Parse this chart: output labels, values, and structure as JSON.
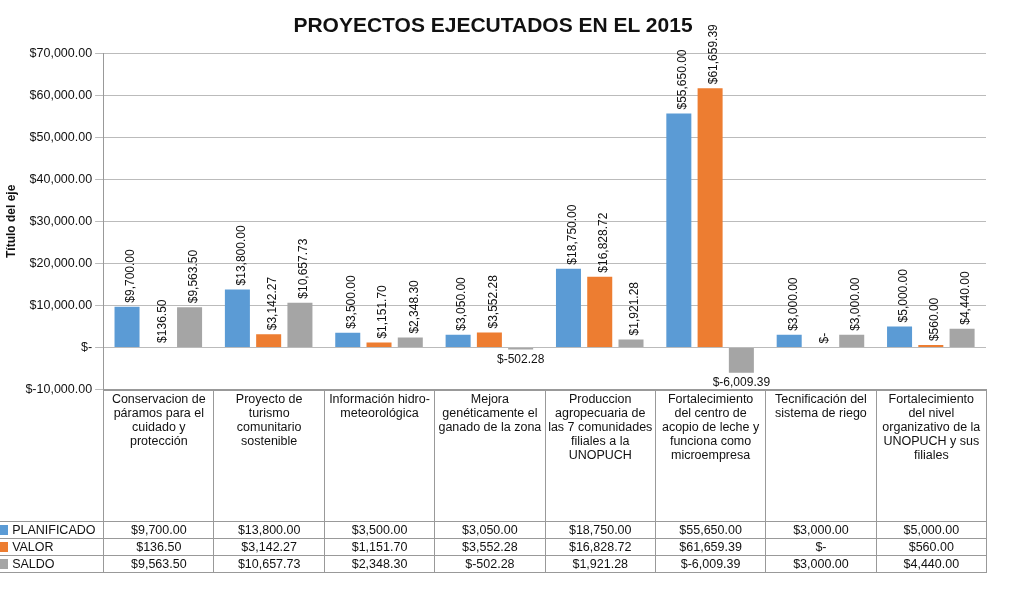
{
  "chart_data": {
    "type": "bar",
    "title": "PROYECTOS EJECUTADOS EN EL 2015",
    "ylabel": "Título del eje",
    "categories": [
      "Conservacion de páramos para el cuidado y protección",
      "Proyecto de turismo comunitario sostenible",
      "Información hidro-meteorológica",
      "Mejora genéticamente el ganado de la zona",
      "Produccion agropecuaria de las 7 comunidades filiales a la UNOPUCH",
      "Fortalecimiento del centro de acopio de leche y funciona como microempresa",
      "Tecnificación del sistema de riego",
      "Fortalecimiento del nivel organizativo de la UNOPUCH y sus filiales"
    ],
    "series": [
      {
        "name": "PLANIFICADO",
        "color": "#5b9bd5",
        "values": [
          9700,
          13800,
          3500,
          3050,
          18750,
          55650,
          3000,
          5000
        ],
        "value_labels": [
          "$9,700.00",
          "$13,800.00",
          "$3,500.00",
          "$3,050.00",
          "$18,750.00",
          "$55,650.00",
          "$3,000.00",
          "$5,000.00"
        ]
      },
      {
        "name": "VALOR",
        "color": "#ed7d31",
        "values": [
          136.5,
          3142.27,
          1151.7,
          3552.28,
          16828.72,
          61659.39,
          0,
          560
        ],
        "value_labels": [
          "$136.50",
          "$3,142.27",
          "$1,151.70",
          "$3,552.28",
          "$16,828.72",
          "$61,659.39",
          "$-",
          "$560.00"
        ]
      },
      {
        "name": "SALDO",
        "color": "#a5a5a5",
        "values": [
          9563.5,
          10657.73,
          2348.3,
          -502.28,
          1921.28,
          -6009.39,
          3000,
          4440
        ],
        "value_labels": [
          "$9,563.50",
          "$10,657.73",
          "$2,348.30",
          "$-502.28",
          "$1,921.28",
          "$-6,009.39",
          "$3,000.00",
          "$4,440.00"
        ]
      }
    ],
    "ylim": [
      -10000,
      70000
    ],
    "yticks": [
      {
        "value": -10000,
        "label": "$-10,000.00"
      },
      {
        "value": 0,
        "label": "$-"
      },
      {
        "value": 10000,
        "label": "$10,000.00"
      },
      {
        "value": 20000,
        "label": "$20,000.00"
      },
      {
        "value": 30000,
        "label": "$30,000.00"
      },
      {
        "value": 40000,
        "label": "$40,000.00"
      },
      {
        "value": 50000,
        "label": "$50,000.00"
      },
      {
        "value": 60000,
        "label": "$60,000.00"
      },
      {
        "value": 70000,
        "label": "$70,000.00"
      }
    ],
    "grid": "y",
    "legend": "bottom left"
  }
}
